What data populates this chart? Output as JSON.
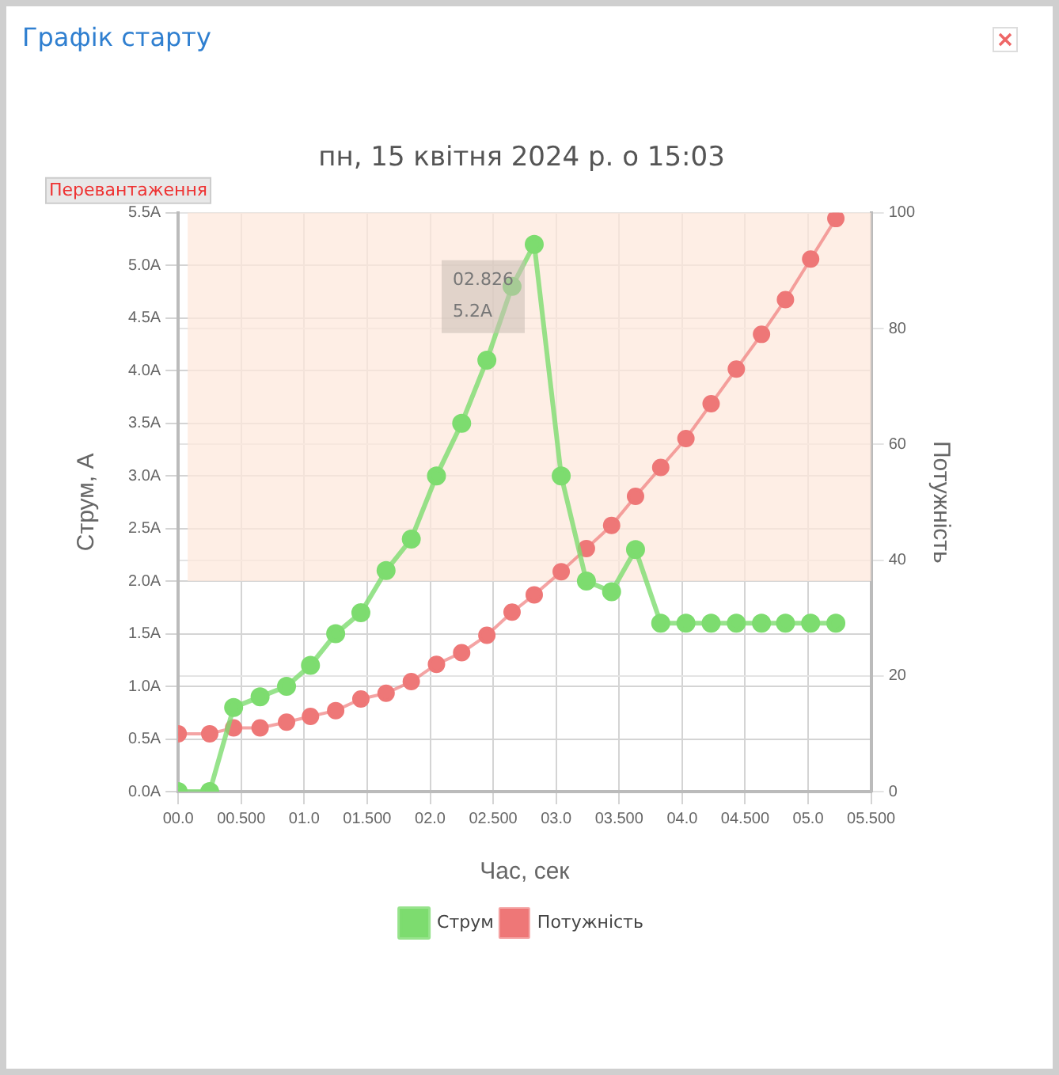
{
  "chart_data": {
    "type": "line",
    "title": "Графік старту",
    "subtitle": "пн, 15 квітня 2024 р. о 15:03",
    "xlabel": "Час, сек",
    "ylabel": "Струм, А",
    "y2label": "Потужність",
    "x": [
      0,
      0.25,
      0.44,
      0.65,
      0.86,
      1.05,
      1.25,
      1.45,
      1.65,
      1.85,
      2.05,
      2.25,
      2.45,
      2.65,
      2.826,
      3.04,
      3.24,
      3.44,
      3.63,
      3.83,
      4.03,
      4.23,
      4.43,
      4.63,
      4.82,
      5.02,
      5.22
    ],
    "series": [
      {
        "name": "Струм",
        "color": "#7ddc6f",
        "values": [
          0,
          0,
          0.8,
          0.9,
          1.0,
          1.2,
          1.5,
          1.7,
          2.1,
          2.4,
          3.0,
          3.5,
          4.1,
          4.8,
          5.2,
          3.0,
          2.0,
          1.9,
          2.3,
          1.6,
          1.6,
          1.6,
          1.6,
          1.6,
          1.6,
          1.6,
          1.6
        ]
      },
      {
        "name": "Потужність",
        "color": "#ee7777",
        "axis": "y2",
        "values": [
          10,
          10,
          11,
          11,
          12,
          13,
          14,
          16,
          17,
          19,
          22,
          24,
          27,
          31,
          34,
          38,
          42,
          46,
          51,
          56,
          61,
          67,
          73,
          79,
          85,
          92,
          99
        ]
      }
    ],
    "xlim": [
      0,
      5.5
    ],
    "xticks": [
      {
        "value": 0,
        "label": "00.0"
      },
      {
        "value": 0.5,
        "label": "00.500"
      },
      {
        "value": 1,
        "label": "01.0"
      },
      {
        "value": 1.5,
        "label": "01.500"
      },
      {
        "value": 2,
        "label": "02.0"
      },
      {
        "value": 2.5,
        "label": "02.500"
      },
      {
        "value": 3,
        "label": "03.0"
      },
      {
        "value": 3.5,
        "label": "03.500"
      },
      {
        "value": 4,
        "label": "04.0"
      },
      {
        "value": 4.5,
        "label": "04.500"
      },
      {
        "value": 5,
        "label": "05.0"
      },
      {
        "value": 5.5,
        "label": "05.500"
      }
    ],
    "ylim": [
      0,
      5.5
    ],
    "yticks": [
      {
        "value": 0,
        "label": "0.0A"
      },
      {
        "value": 0.5,
        "label": "0.5A"
      },
      {
        "value": 1,
        "label": "1.0A"
      },
      {
        "value": 1.5,
        "label": "1.5A"
      },
      {
        "value": 2,
        "label": "2.0A"
      },
      {
        "value": 2.5,
        "label": "2.5A"
      },
      {
        "value": 3,
        "label": "3.0A"
      },
      {
        "value": 3.5,
        "label": "3.5A"
      },
      {
        "value": 4,
        "label": "4.0A"
      },
      {
        "value": 4.5,
        "label": "4.5A"
      },
      {
        "value": 5,
        "label": "5.0A"
      },
      {
        "value": 5.5,
        "label": "5.5A"
      }
    ],
    "y2lim": [
      0,
      100
    ],
    "y2ticks": [
      0,
      20,
      40,
      60,
      80,
      100
    ],
    "bands": [
      {
        "axis": "y",
        "from": 2,
        "to": 5.5,
        "label": "Перевантаження",
        "color": "#fde8dc"
      }
    ],
    "annotations": [
      {
        "text": "02.826\n5.2A",
        "x": 2.826,
        "y": 5.2
      }
    ],
    "grid": true,
    "legend": "bottom",
    "marker": "circle",
    "line_style": "solid"
  }
}
